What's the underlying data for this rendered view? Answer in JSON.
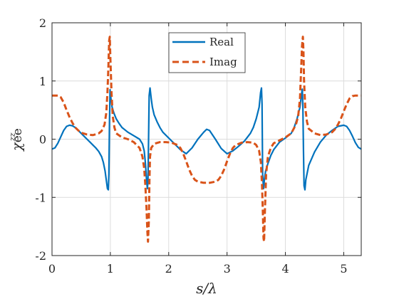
{
  "chart_data": {
    "type": "line",
    "title": "",
    "xlabel": "s/λ",
    "ylabel": "χee zz",
    "xlim": [
      0,
      5.3
    ],
    "ylim": [
      -2,
      2
    ],
    "xticks": [
      "0",
      "1",
      "2",
      "3",
      "4",
      "5"
    ],
    "yticks": [
      "-2",
      "-1",
      "0",
      "1",
      "2"
    ],
    "grid": true,
    "legend_position": "top-center",
    "series": [
      {
        "name": "Real",
        "color": "#0072BD",
        "style": "solid",
        "points": [
          [
            0.0,
            -0.17
          ],
          [
            0.05,
            -0.15
          ],
          [
            0.1,
            -0.07
          ],
          [
            0.15,
            0.04
          ],
          [
            0.2,
            0.15
          ],
          [
            0.25,
            0.22
          ],
          [
            0.3,
            0.24
          ],
          [
            0.35,
            0.23
          ],
          [
            0.4,
            0.2
          ],
          [
            0.45,
            0.15
          ],
          [
            0.5,
            0.1
          ],
          [
            0.55,
            0.05
          ],
          [
            0.6,
            0.0
          ],
          [
            0.65,
            -0.05
          ],
          [
            0.7,
            -0.1
          ],
          [
            0.75,
            -0.15
          ],
          [
            0.8,
            -0.21
          ],
          [
            0.85,
            -0.3
          ],
          [
            0.88,
            -0.4
          ],
          [
            0.91,
            -0.55
          ],
          [
            0.93,
            -0.7
          ],
          [
            0.95,
            -0.85
          ],
          [
            0.965,
            -0.87
          ],
          [
            0.975,
            -0.6
          ],
          [
            0.985,
            0.3
          ],
          [
            0.995,
            0.85
          ],
          [
            1.01,
            0.7
          ],
          [
            1.03,
            0.55
          ],
          [
            1.06,
            0.45
          ],
          [
            1.1,
            0.35
          ],
          [
            1.15,
            0.27
          ],
          [
            1.2,
            0.2
          ],
          [
            1.3,
            0.12
          ],
          [
            1.4,
            0.06
          ],
          [
            1.5,
            0.0
          ],
          [
            1.55,
            -0.08
          ],
          [
            1.58,
            -0.2
          ],
          [
            1.6,
            -0.4
          ],
          [
            1.62,
            -0.7
          ],
          [
            1.635,
            -0.85
          ],
          [
            1.645,
            -0.7
          ],
          [
            1.655,
            0.0
          ],
          [
            1.665,
            0.75
          ],
          [
            1.68,
            0.88
          ],
          [
            1.7,
            0.7
          ],
          [
            1.72,
            0.55
          ],
          [
            1.75,
            0.42
          ],
          [
            1.8,
            0.3
          ],
          [
            1.85,
            0.2
          ],
          [
            1.9,
            0.12
          ],
          [
            2.0,
            0.02
          ],
          [
            2.1,
            -0.08
          ],
          [
            2.2,
            -0.18
          ],
          [
            2.3,
            -0.25
          ],
          [
            2.4,
            -0.15
          ],
          [
            2.5,
            0.0
          ],
          [
            2.6,
            0.12
          ],
          [
            2.65,
            0.17
          ],
          [
            2.7,
            0.15
          ],
          [
            2.8,
            0.0
          ],
          [
            2.9,
            -0.16
          ],
          [
            3.0,
            -0.25
          ],
          [
            3.1,
            -0.2
          ],
          [
            3.2,
            -0.12
          ],
          [
            3.3,
            -0.03
          ],
          [
            3.4,
            0.1
          ],
          [
            3.45,
            0.2
          ],
          [
            3.5,
            0.35
          ],
          [
            3.55,
            0.55
          ],
          [
            3.575,
            0.8
          ],
          [
            3.59,
            0.88
          ],
          [
            3.6,
            0.6
          ],
          [
            3.605,
            0.0
          ],
          [
            3.61,
            -0.6
          ],
          [
            3.625,
            -0.85
          ],
          [
            3.64,
            -0.7
          ],
          [
            3.66,
            -0.55
          ],
          [
            3.7,
            -0.42
          ],
          [
            3.75,
            -0.28
          ],
          [
            3.8,
            -0.18
          ],
          [
            3.9,
            -0.05
          ],
          [
            4.0,
            0.02
          ],
          [
            4.1,
            0.1
          ],
          [
            4.15,
            0.2
          ],
          [
            4.2,
            0.35
          ],
          [
            4.25,
            0.55
          ],
          [
            4.28,
            0.8
          ],
          [
            4.29,
            0.86
          ],
          [
            4.3,
            0.55
          ],
          [
            4.31,
            -0.2
          ],
          [
            4.32,
            -0.8
          ],
          [
            4.335,
            -0.87
          ],
          [
            4.35,
            -0.7
          ],
          [
            4.4,
            -0.45
          ],
          [
            4.5,
            -0.22
          ],
          [
            4.6,
            -0.05
          ],
          [
            4.7,
            0.07
          ],
          [
            4.8,
            0.15
          ],
          [
            4.9,
            0.22
          ],
          [
            5.0,
            0.24
          ],
          [
            5.05,
            0.22
          ],
          [
            5.1,
            0.15
          ],
          [
            5.15,
            0.05
          ],
          [
            5.2,
            -0.06
          ],
          [
            5.25,
            -0.14
          ],
          [
            5.3,
            -0.17
          ]
        ]
      },
      {
        "name": "Imag",
        "color": "#D95319",
        "style": "dashed",
        "points": [
          [
            0.0,
            0.75
          ],
          [
            0.1,
            0.75
          ],
          [
            0.15,
            0.72
          ],
          [
            0.2,
            0.63
          ],
          [
            0.25,
            0.5
          ],
          [
            0.3,
            0.38
          ],
          [
            0.35,
            0.28
          ],
          [
            0.4,
            0.2
          ],
          [
            0.45,
            0.15
          ],
          [
            0.5,
            0.11
          ],
          [
            0.6,
            0.08
          ],
          [
            0.7,
            0.07
          ],
          [
            0.8,
            0.1
          ],
          [
            0.85,
            0.14
          ],
          [
            0.9,
            0.25
          ],
          [
            0.93,
            0.45
          ],
          [
            0.95,
            0.8
          ],
          [
            0.965,
            1.2
          ],
          [
            0.98,
            1.7
          ],
          [
            0.99,
            1.76
          ],
          [
            1.0,
            1.4
          ],
          [
            1.02,
            0.8
          ],
          [
            1.04,
            0.4
          ],
          [
            1.07,
            0.2
          ],
          [
            1.1,
            0.1
          ],
          [
            1.2,
            0.03
          ],
          [
            1.3,
            0.0
          ],
          [
            1.4,
            -0.05
          ],
          [
            1.5,
            -0.15
          ],
          [
            1.55,
            -0.3
          ],
          [
            1.58,
            -0.5
          ],
          [
            1.6,
            -0.8
          ],
          [
            1.62,
            -1.2
          ],
          [
            1.635,
            -1.6
          ],
          [
            1.645,
            -1.76
          ],
          [
            1.66,
            -1.4
          ],
          [
            1.67,
            -0.7
          ],
          [
            1.68,
            -0.3
          ],
          [
            1.7,
            -0.15
          ],
          [
            1.75,
            -0.08
          ],
          [
            1.85,
            -0.05
          ],
          [
            1.95,
            -0.05
          ],
          [
            2.05,
            -0.06
          ],
          [
            2.15,
            -0.1
          ],
          [
            2.2,
            -0.15
          ],
          [
            2.25,
            -0.25
          ],
          [
            2.3,
            -0.38
          ],
          [
            2.35,
            -0.52
          ],
          [
            2.4,
            -0.63
          ],
          [
            2.45,
            -0.7
          ],
          [
            2.5,
            -0.73
          ],
          [
            2.6,
            -0.75
          ],
          [
            2.7,
            -0.75
          ],
          [
            2.8,
            -0.73
          ],
          [
            2.85,
            -0.7
          ],
          [
            2.9,
            -0.63
          ],
          [
            2.95,
            -0.52
          ],
          [
            3.0,
            -0.38
          ],
          [
            3.05,
            -0.25
          ],
          [
            3.1,
            -0.15
          ],
          [
            3.15,
            -0.1
          ],
          [
            3.25,
            -0.06
          ],
          [
            3.35,
            -0.05
          ],
          [
            3.45,
            -0.06
          ],
          [
            3.5,
            -0.1
          ],
          [
            3.55,
            -0.2
          ],
          [
            3.58,
            -0.4
          ],
          [
            3.6,
            -0.8
          ],
          [
            3.615,
            -1.3
          ],
          [
            3.625,
            -1.7
          ],
          [
            3.635,
            -1.76
          ],
          [
            3.65,
            -1.2
          ],
          [
            3.67,
            -0.6
          ],
          [
            3.7,
            -0.3
          ],
          [
            3.75,
            -0.15
          ],
          [
            3.8,
            -0.07
          ],
          [
            3.9,
            -0.02
          ],
          [
            4.0,
            0.03
          ],
          [
            4.1,
            0.1
          ],
          [
            4.18,
            0.25
          ],
          [
            4.22,
            0.4
          ],
          [
            4.25,
            0.7
          ],
          [
            4.27,
            1.2
          ],
          [
            4.285,
            1.6
          ],
          [
            4.3,
            1.76
          ],
          [
            4.31,
            1.5
          ],
          [
            4.32,
            1.0
          ],
          [
            4.34,
            0.55
          ],
          [
            4.37,
            0.3
          ],
          [
            4.4,
            0.18
          ],
          [
            4.5,
            0.1
          ],
          [
            4.6,
            0.07
          ],
          [
            4.7,
            0.08
          ],
          [
            4.8,
            0.12
          ],
          [
            4.85,
            0.17
          ],
          [
            4.9,
            0.25
          ],
          [
            4.95,
            0.35
          ],
          [
            5.0,
            0.48
          ],
          [
            5.05,
            0.6
          ],
          [
            5.1,
            0.7
          ],
          [
            5.15,
            0.74
          ],
          [
            5.2,
            0.75
          ],
          [
            5.3,
            0.75
          ]
        ]
      }
    ]
  }
}
